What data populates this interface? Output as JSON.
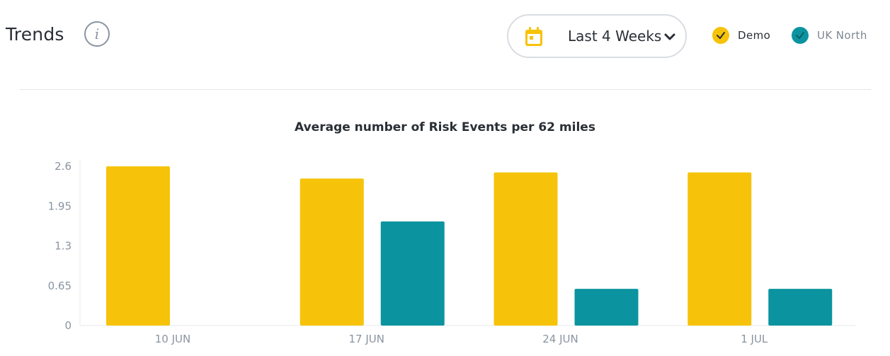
{
  "header": {
    "title": "Trends",
    "info_glyph": "i",
    "info_icon": "info-icon"
  },
  "range_select": {
    "label": "Last 4 Weeks",
    "icon": "calendar-icon",
    "chevron_icon": "chevron-down-icon"
  },
  "legend": [
    {
      "label": "Demo",
      "color": "#F6C30A",
      "checked": true,
      "icon": "check-icon"
    },
    {
      "label": "UK North",
      "color": "#0B949F",
      "checked": true,
      "icon": "check-icon"
    }
  ],
  "colors": {
    "demo": "#F6C30A",
    "uk_north": "#0B949F",
    "axis_text": "#8a94a2",
    "grid": "#e8eaed"
  },
  "chart_data": {
    "type": "bar",
    "title": "Average number of Risk Events per 62 miles",
    "xlabel": "",
    "ylabel": "",
    "categories": [
      "10 JUN",
      "17 JUN",
      "24 JUN",
      "1 JUL"
    ],
    "y_ticks": [
      "0",
      "0.65",
      "1.3",
      "1.95",
      "2.6"
    ],
    "ylim": [
      0,
      2.6
    ],
    "series": [
      {
        "name": "Demo",
        "color": "#F6C30A",
        "values": [
          2.6,
          2.4,
          2.5,
          2.5
        ]
      },
      {
        "name": "UK North",
        "color": "#0B949F",
        "values": [
          0,
          1.7,
          0.6,
          0.6
        ]
      }
    ],
    "grid": false,
    "legend_position": "top-right"
  }
}
